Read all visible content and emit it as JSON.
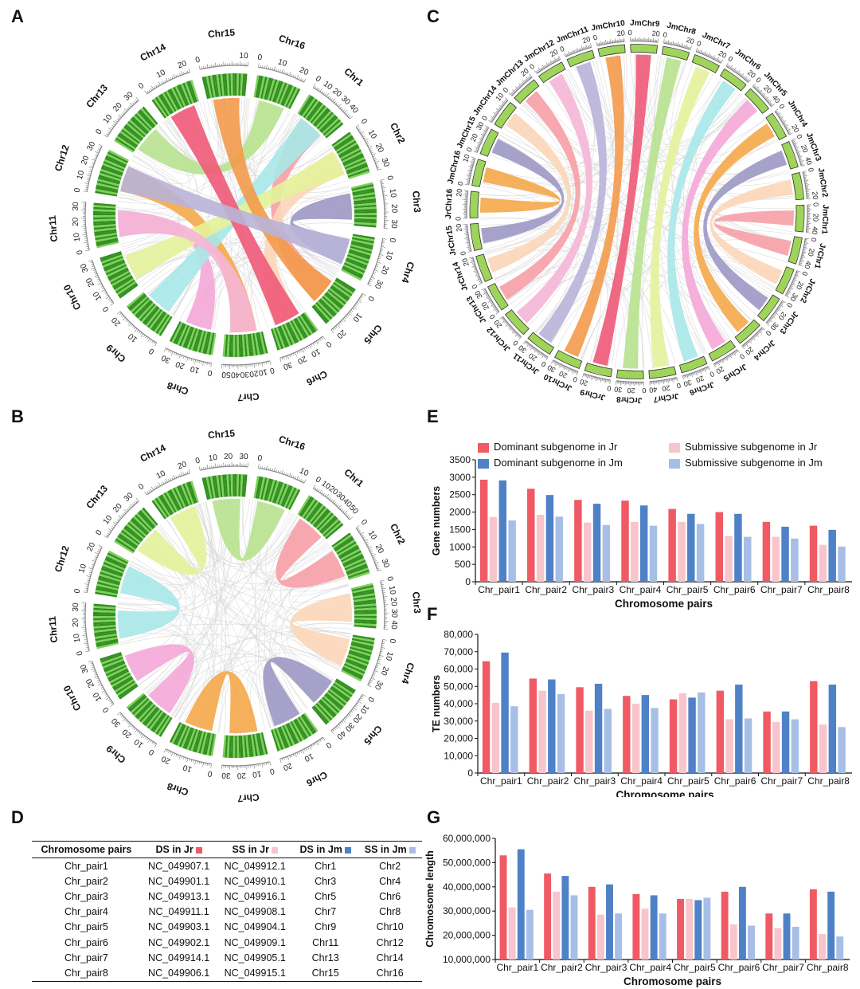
{
  "colors": {
    "dom_jr": "#f05a64",
    "sub_jr": "#f7c5cb",
    "dom_jm": "#4f81c7",
    "sub_jm": "#a7bfe6",
    "chrom_dark": "#2f8f1f",
    "chrom_light": "#7fd05a",
    "link_grey": "#d8d8d8",
    "ribbon_palette": [
      "#f6a0a6",
      "#fbd6b8",
      "#9c98c4",
      "#f5a94a",
      "#f4a9d8",
      "#a8e8e8",
      "#e4f29a",
      "#b7e28e",
      "#f05a78",
      "#f39a4a",
      "#b9b4d8",
      "#f5b6d6"
    ]
  },
  "panels": {
    "A": "A",
    "B": "B",
    "C": "C",
    "D": "D",
    "E": "E",
    "F": "F",
    "G": "G"
  },
  "circos_A": {
    "chromosomes": [
      {
        "name": "Chr1",
        "ticks": [
          "0",
          "10",
          "20",
          "30",
          "40"
        ]
      },
      {
        "name": "Chr2",
        "ticks": [
          "0",
          "10",
          "20",
          "30"
        ]
      },
      {
        "name": "Chr3",
        "ticks": [
          "0",
          "10",
          "20",
          "30"
        ]
      },
      {
        "name": "Chr4",
        "ticks": [
          "0",
          "10",
          "20",
          "30"
        ]
      },
      {
        "name": "Chr5",
        "ticks": [
          "0",
          "10",
          "20"
        ]
      },
      {
        "name": "Chr6",
        "ticks": [
          "0",
          "10",
          "20",
          "30"
        ]
      },
      {
        "name": "Chr7",
        "ticks": [
          "0",
          "10",
          "20",
          "30",
          "40",
          "50"
        ]
      },
      {
        "name": "Chr8",
        "ticks": [
          "0",
          "10",
          "20",
          "30"
        ]
      },
      {
        "name": "Chr9",
        "ticks": [
          "0",
          "10",
          "20"
        ]
      },
      {
        "name": "Chr10",
        "ticks": [
          "0",
          "10",
          "20",
          "30"
        ]
      },
      {
        "name": "Chr11",
        "ticks": [
          "0",
          "10",
          "20",
          "30"
        ]
      },
      {
        "name": "Chr12",
        "ticks": [
          "0",
          "10",
          "20",
          "30"
        ]
      },
      {
        "name": "Chr13",
        "ticks": [
          "0",
          "10",
          "20",
          "30"
        ]
      },
      {
        "name": "Chr14",
        "ticks": [
          "0",
          "10",
          "20"
        ]
      },
      {
        "name": "Chr15",
        "ticks": [
          "0",
          "10"
        ]
      },
      {
        "name": "Chr16",
        "ticks": [
          "0",
          "10",
          "20"
        ]
      }
    ],
    "links": [
      [
        1,
        5
      ],
      [
        2,
        6
      ],
      [
        3,
        4
      ],
      [
        7,
        12
      ],
      [
        8,
        11
      ],
      [
        9,
        1
      ],
      [
        10,
        2
      ],
      [
        13,
        16
      ],
      [
        14,
        6
      ],
      [
        15,
        5
      ],
      [
        12,
        4
      ],
      [
        11,
        7
      ]
    ]
  },
  "circos_B": {
    "chromosomes": [
      {
        "name": "Chr1",
        "ticks": [
          "0",
          "10",
          "20",
          "30",
          "40",
          "50"
        ]
      },
      {
        "name": "Chr2",
        "ticks": [
          "0",
          "10",
          "20",
          "30"
        ]
      },
      {
        "name": "Chr3",
        "ticks": [
          "0",
          "10",
          "20",
          "30",
          "40"
        ]
      },
      {
        "name": "Chr4",
        "ticks": [
          "0",
          "10",
          "20",
          "30"
        ]
      },
      {
        "name": "Chr5",
        "ticks": [
          "0",
          "10",
          "20",
          "30",
          "40"
        ]
      },
      {
        "name": "Chr6",
        "ticks": [
          "0",
          "10",
          "20"
        ]
      },
      {
        "name": "Chr7",
        "ticks": [
          "0",
          "10",
          "20",
          "30"
        ]
      },
      {
        "name": "Chr8",
        "ticks": [
          "0",
          "10",
          "20"
        ]
      },
      {
        "name": "Chr9",
        "ticks": [
          "0",
          "10",
          "20",
          "30"
        ]
      },
      {
        "name": "Chr10",
        "ticks": [
          "0",
          "10",
          "20",
          "30"
        ]
      },
      {
        "name": "Chr11",
        "ticks": [
          "0",
          "10",
          "20",
          "30"
        ]
      },
      {
        "name": "Chr12",
        "ticks": [
          "0",
          "10",
          "20"
        ]
      },
      {
        "name": "Chr13",
        "ticks": [
          "0",
          "10",
          "20",
          "30"
        ]
      },
      {
        "name": "Chr14",
        "ticks": [
          "0",
          "10",
          "20"
        ]
      },
      {
        "name": "Chr15",
        "ticks": [
          "0",
          "10",
          "20",
          "30"
        ]
      },
      {
        "name": "Chr16",
        "ticks": [
          "0",
          "10"
        ]
      }
    ],
    "links": [
      [
        1,
        2
      ],
      [
        3,
        4
      ],
      [
        5,
        6
      ],
      [
        7,
        8
      ],
      [
        9,
        10
      ],
      [
        11,
        12
      ],
      [
        13,
        14
      ],
      [
        15,
        16
      ]
    ]
  },
  "circos_C": {
    "chromosomes": [
      {
        "name": "JrChr1",
        "ticks": [
          "0",
          "20",
          "40"
        ]
      },
      {
        "name": "JrChr2",
        "ticks": [
          "0",
          "20",
          "30"
        ]
      },
      {
        "name": "JrChr3",
        "ticks": [
          "0",
          "20",
          "30"
        ]
      },
      {
        "name": "JrChr4",
        "ticks": [
          "0",
          "20"
        ]
      },
      {
        "name": "JrChr5",
        "ticks": [
          "0",
          "20"
        ]
      },
      {
        "name": "JrChr6",
        "ticks": [
          "0",
          "20",
          "30"
        ]
      },
      {
        "name": "JrChr7",
        "ticks": [
          "0",
          "20",
          "40"
        ]
      },
      {
        "name": "JrChr8",
        "ticks": [
          "0",
          "20",
          "30"
        ]
      },
      {
        "name": "JrChr9",
        "ticks": [
          "0",
          "20"
        ]
      },
      {
        "name": "JrChr10",
        "ticks": [
          "0",
          "20",
          "30"
        ]
      },
      {
        "name": "JrChr11",
        "ticks": [
          "0",
          "20",
          "30"
        ]
      },
      {
        "name": "JrChr12",
        "ticks": [
          "0",
          "20"
        ]
      },
      {
        "name": "JrChr13",
        "ticks": [
          "0",
          "20",
          "30"
        ]
      },
      {
        "name": "JrChr14",
        "ticks": [
          "0",
          "20"
        ]
      },
      {
        "name": "JrChr15",
        "ticks": [
          "0",
          "20"
        ]
      },
      {
        "name": "JrChr16",
        "ticks": [
          "0",
          "20"
        ]
      },
      {
        "name": "JmChr16",
        "ticks": [
          "0",
          "10"
        ]
      },
      {
        "name": "JmChr15",
        "ticks": [
          "0",
          "20",
          "30"
        ]
      },
      {
        "name": "JmChr14",
        "ticks": [
          "0",
          "10"
        ]
      },
      {
        "name": "JmChr13",
        "ticks": [
          "0",
          "20"
        ]
      },
      {
        "name": "JmChr12",
        "ticks": [
          "0",
          "20"
        ]
      },
      {
        "name": "JmChr11",
        "ticks": [
          "0",
          "20"
        ]
      },
      {
        "name": "JmChr10",
        "ticks": [
          "0",
          "20"
        ]
      },
      {
        "name": "JmChr9",
        "ticks": [
          "0",
          "20"
        ]
      },
      {
        "name": "JmChr8",
        "ticks": [
          "0",
          "20"
        ]
      },
      {
        "name": "JmChr7",
        "ticks": [
          "0",
          "20"
        ]
      },
      {
        "name": "JmChr6",
        "ticks": [
          "0",
          "20"
        ]
      },
      {
        "name": "JmChr5",
        "ticks": [
          "0",
          "20",
          "40"
        ]
      },
      {
        "name": "JmChr4",
        "ticks": [
          "0",
          "20"
        ]
      },
      {
        "name": "JmChr3",
        "ticks": [
          "0",
          "20",
          "40"
        ]
      },
      {
        "name": "JmChr2",
        "ticks": [
          "0",
          "20"
        ]
      },
      {
        "name": "JmChr1",
        "ticks": [
          "0",
          "20",
          "40"
        ]
      }
    ],
    "links": [
      [
        0,
        31
      ],
      [
        1,
        30
      ],
      [
        2,
        29
      ],
      [
        3,
        28
      ],
      [
        4,
        27
      ],
      [
        5,
        26
      ],
      [
        6,
        25
      ],
      [
        7,
        24
      ],
      [
        8,
        23
      ],
      [
        9,
        22
      ],
      [
        10,
        21
      ],
      [
        11,
        20
      ],
      [
        12,
        19
      ],
      [
        13,
        18
      ],
      [
        14,
        17
      ],
      [
        15,
        16
      ]
    ]
  },
  "table": {
    "headers": [
      "Chromosome pairs",
      "DS in Jr",
      "SS in Jr",
      "DS in Jm",
      "SS in Jm"
    ],
    "rows": [
      [
        "Chr_pair1",
        "NC_049907.1",
        "NC_049912.1",
        "Chr1",
        "Chr2"
      ],
      [
        "Chr_pair2",
        "NC_049901.1",
        "NC_049910.1",
        "Chr3",
        "Chr4"
      ],
      [
        "Chr_pair3",
        "NC_049913.1",
        "NC_049916.1",
        "Chr5",
        "Chr6"
      ],
      [
        "Chr_pair4",
        "NC_049911.1",
        "NC_049908.1",
        "Chr7",
        "Chr8"
      ],
      [
        "Chr_pair5",
        "NC_049903.1",
        "NC_049904.1",
        "Chr9",
        "Chr10"
      ],
      [
        "Chr_pair6",
        "NC_049902.1",
        "NC_049909.1",
        "Chr11",
        "Chr12"
      ],
      [
        "Chr_pair7",
        "NC_049914.1",
        "NC_049905.1",
        "Chr13",
        "Chr14"
      ],
      [
        "Chr_pair8",
        "NC_049906.1",
        "NC_049915.1",
        "Chr15",
        "Chr16"
      ]
    ]
  },
  "legend": {
    "dom_jr": "Dominant subgenome in Jr",
    "sub_jr": "Submissive subgenome in Jr",
    "dom_jm": "Dominant subgenome in Jm",
    "sub_jm": "Submissive subgenome in Jm"
  },
  "chart_data": [
    {
      "type": "bar",
      "id": "E",
      "categories": [
        "Chr_pair1",
        "Chr_pair2",
        "Chr_pair3",
        "Chr_pair4",
        "Chr_pair5",
        "Chr_pair6",
        "Chr_pair7",
        "Chr_pair8"
      ],
      "series": [
        {
          "name": "Dominant subgenome in Jr",
          "values": [
            2930,
            2670,
            2350,
            2330,
            2090,
            2000,
            1720,
            1610
          ]
        },
        {
          "name": "Submissive subgenome in Jr",
          "values": [
            1860,
            1920,
            1700,
            1720,
            1720,
            1310,
            1290,
            1060
          ]
        },
        {
          "name": "Dominant subgenome in Jm",
          "values": [
            2910,
            2490,
            2240,
            2190,
            1950,
            1950,
            1580,
            1490
          ]
        },
        {
          "name": "Submissive subgenome in Jm",
          "values": [
            1760,
            1870,
            1630,
            1610,
            1660,
            1290,
            1240,
            1010
          ]
        }
      ],
      "ylabel": "Gene numbers",
      "xlabel": "Chromosome pairs",
      "ylim": [
        0,
        3500
      ],
      "yticks": [
        "0",
        "500",
        "1000",
        "1500",
        "2000",
        "2500",
        "3000",
        "3500"
      ],
      "ytick_values": [
        0,
        500,
        1000,
        1500,
        2000,
        2500,
        3000,
        3500
      ]
    },
    {
      "type": "bar",
      "id": "F",
      "categories": [
        "Chr_pair1",
        "Chr_pair2",
        "Chr_pair3",
        "Chr_pair4",
        "Chr_pair5",
        "Chr_pair6",
        "Chr_pair7",
        "Chr_pair8"
      ],
      "series": [
        {
          "name": "Dominant subgenome in Jr",
          "values": [
            64500,
            54500,
            49500,
            44500,
            42500,
            47500,
            35500,
            53000
          ]
        },
        {
          "name": "Submissive subgenome in Jr",
          "values": [
            40500,
            47500,
            36000,
            40000,
            46000,
            31000,
            29500,
            28000
          ]
        },
        {
          "name": "Dominant subgenome in Jm",
          "values": [
            69500,
            54000,
            51500,
            45000,
            43500,
            51000,
            35500,
            51000
          ]
        },
        {
          "name": "Submissive subgenome in Jm",
          "values": [
            38500,
            45500,
            37000,
            37500,
            46500,
            31500,
            31000,
            26500
          ]
        }
      ],
      "ylabel": "TE numbers",
      "xlabel": "Chromosome pairs",
      "ylim": [
        0,
        80000
      ],
      "yticks": [
        "0",
        "10,000",
        "20,000",
        "30,000",
        "40,000",
        "50,000",
        "60,000",
        "70,000",
        "80,000"
      ],
      "ytick_values": [
        0,
        10000,
        20000,
        30000,
        40000,
        50000,
        60000,
        70000,
        80000
      ]
    },
    {
      "type": "bar",
      "id": "G",
      "categories": [
        "Chr_pair1",
        "Chr_pair2",
        "Chr_pair3",
        "Chr_pair4",
        "Chr_pair5",
        "Chr_pair6",
        "Chr_pair7",
        "Chr_pair8"
      ],
      "series": [
        {
          "name": "Dominant subgenome in Jr",
          "values": [
            53000000,
            45500000,
            40000000,
            37000000,
            35000000,
            38000000,
            29000000,
            39000000
          ]
        },
        {
          "name": "Submissive subgenome in Jr",
          "values": [
            31500000,
            38000000,
            28500000,
            31000000,
            35000000,
            24500000,
            23000000,
            20500000
          ]
        },
        {
          "name": "Dominant subgenome in Jm",
          "values": [
            55500000,
            44500000,
            41000000,
            36500000,
            34500000,
            40000000,
            29000000,
            38000000
          ]
        },
        {
          "name": "Submissive subgenome in Jm",
          "values": [
            30500000,
            36500000,
            29000000,
            29000000,
            35500000,
            24000000,
            23500000,
            19500000
          ]
        }
      ],
      "ylabel": "Chromosome length",
      "xlabel": "Chromosome pairs",
      "ylim": [
        10000000,
        60000000
      ],
      "yticks": [
        "10,000,000",
        "20,000,000",
        "30,000,000",
        "40,000,000",
        "50,000,000",
        "60,000,000"
      ],
      "ytick_values": [
        10000000,
        20000000,
        30000000,
        40000000,
        50000000,
        60000000
      ]
    }
  ]
}
